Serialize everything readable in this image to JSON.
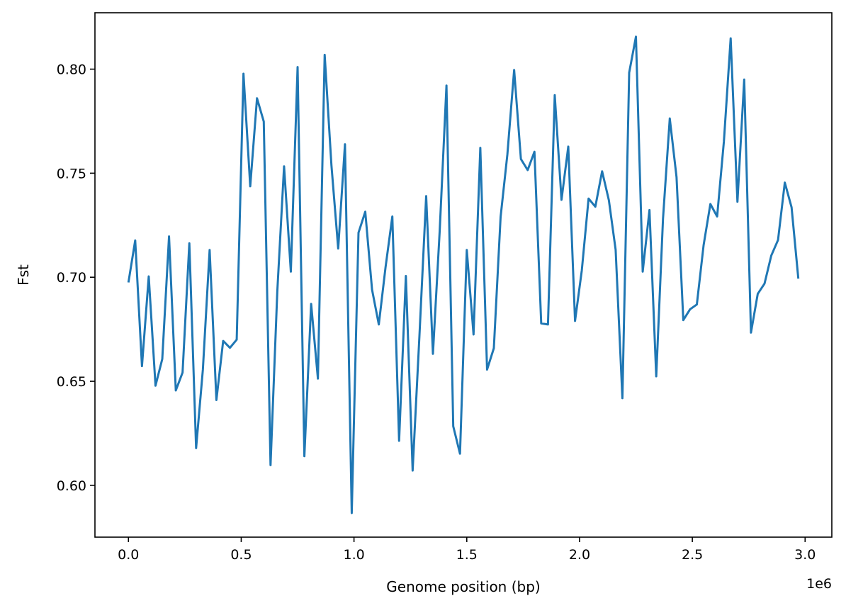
{
  "chart_data": {
    "type": "line",
    "title": "",
    "xlabel": "Genome position (bp)",
    "ylabel": "Fst",
    "x_offset_label": "1e6",
    "xlim": [
      -0.1485,
      3.1185
    ],
    "ylim": [
      0.5751,
      0.8271
    ],
    "x_ticks": [
      0.0,
      0.5,
      1.0,
      1.5,
      2.0,
      2.5,
      3.0
    ],
    "x_tick_labels": [
      "0.0",
      "0.5",
      "1.0",
      "1.5",
      "2.0",
      "2.5",
      "3.0"
    ],
    "y_ticks": [
      0.6,
      0.65,
      0.7,
      0.75,
      0.8
    ],
    "y_tick_labels": [
      "0.60",
      "0.65",
      "0.70",
      "0.75",
      "0.80"
    ],
    "grid": false,
    "line_color": "#1f77b4",
    "x_step": 0.03,
    "series": [
      {
        "name": "",
        "values": [
          0.6975,
          0.7177,
          0.6573,
          0.7004,
          0.6479,
          0.6607,
          0.7196,
          0.6456,
          0.6542,
          0.7163,
          0.6179,
          0.6556,
          0.7131,
          0.641,
          0.6694,
          0.6661,
          0.67,
          0.7978,
          0.7437,
          0.786,
          0.7748,
          0.6097,
          0.6932,
          0.7533,
          0.7027,
          0.801,
          0.614,
          0.6872,
          0.6513,
          0.8069,
          0.7538,
          0.7138,
          0.7639,
          0.5867,
          0.7214,
          0.7315,
          0.6941,
          0.6773,
          0.7049,
          0.7292,
          0.6214,
          0.7006,
          0.6071,
          0.6715,
          0.739,
          0.6632,
          0.7223,
          0.7921,
          0.6284,
          0.6152,
          0.7131,
          0.6725,
          0.7622,
          0.6556,
          0.6659,
          0.729,
          0.759,
          0.7996,
          0.7568,
          0.7515,
          0.7603,
          0.6778,
          0.6773,
          0.7875,
          0.7372,
          0.7628,
          0.679,
          0.7033,
          0.7378,
          0.7339,
          0.7509,
          0.737,
          0.7132,
          0.6419,
          0.7983,
          0.8156,
          0.7027,
          0.7323,
          0.6524,
          0.7281,
          0.7763,
          0.7481,
          0.6794,
          0.6846,
          0.6869,
          0.7154,
          0.7352,
          0.7292,
          0.7653,
          0.8148,
          0.7363,
          0.795,
          0.6734,
          0.692,
          0.6969,
          0.7104,
          0.7179,
          0.7455,
          0.7336,
          0.6993
        ]
      }
    ]
  }
}
